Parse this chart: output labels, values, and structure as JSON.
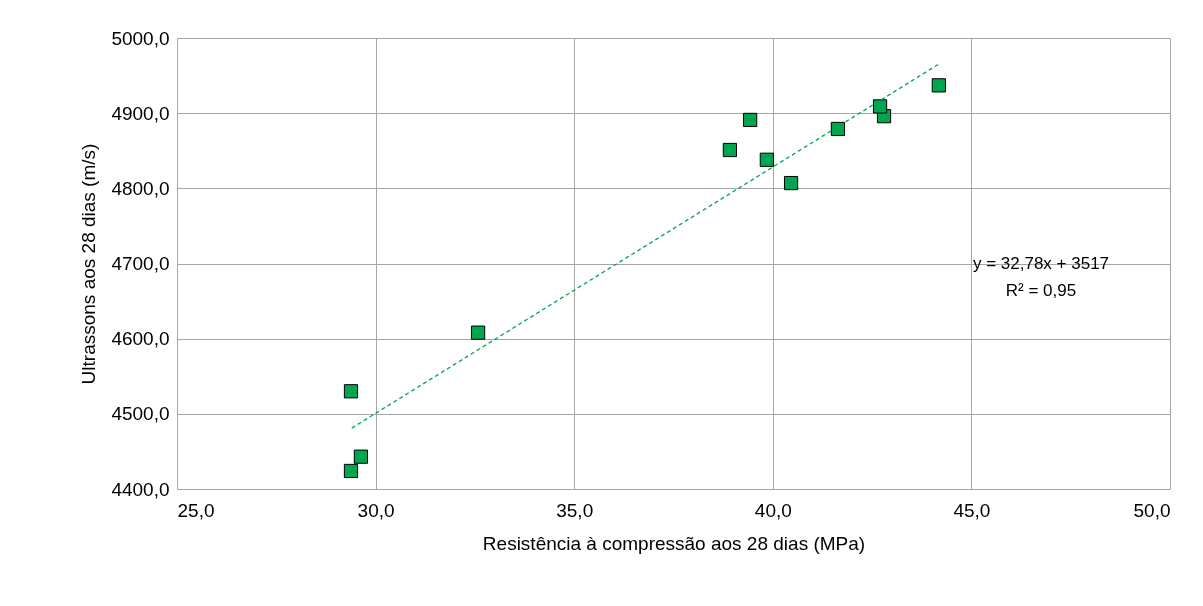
{
  "chart_data": {
    "type": "scatter",
    "xlabel": "Resistência à compressão aos 28 dias (MPa)",
    "ylabel": "Ultrassons aos 28 dias (m/s)",
    "xlim": [
      25,
      50
    ],
    "ylim": [
      4400,
      5000
    ],
    "xticks": [
      {
        "value": 25,
        "label": "25,0"
      },
      {
        "value": 30,
        "label": "30,0"
      },
      {
        "value": 35,
        "label": "35,0"
      },
      {
        "value": 40,
        "label": "40,0"
      },
      {
        "value": 45,
        "label": "45,0"
      },
      {
        "value": 50,
        "label": "50,0"
      }
    ],
    "yticks": [
      {
        "value": 4400,
        "label": "4400,0"
      },
      {
        "value": 4500,
        "label": "4500,0"
      },
      {
        "value": 4600,
        "label": "4600,0"
      },
      {
        "value": 4700,
        "label": "4700,0"
      },
      {
        "value": 4800,
        "label": "4800,0"
      },
      {
        "value": 4900,
        "label": "4900,0"
      },
      {
        "value": 5000,
        "label": "5000,0"
      }
    ],
    "grid": true,
    "series": [
      {
        "color": "#00a550",
        "marker": "square",
        "x": [
          29.38,
          29.38,
          29.63,
          32.58,
          38.92,
          39.43,
          39.85,
          40.46,
          41.64,
          42.8,
          42.7,
          44.18
        ],
        "values": [
          4530,
          4424,
          4443,
          4608,
          4851,
          4891,
          4838,
          4807,
          4879,
          4896,
          4909,
          4937
        ]
      },
      {
        "type": "line",
        "color": "#00a550",
        "line_style": "dashed",
        "marker": "none",
        "x": [
          29.4,
          44.2
        ],
        "values": [
          4481,
          4966
        ]
      }
    ],
    "annotations": [
      "y = 32,78x + 3517",
      "R² = 0,95"
    ]
  }
}
